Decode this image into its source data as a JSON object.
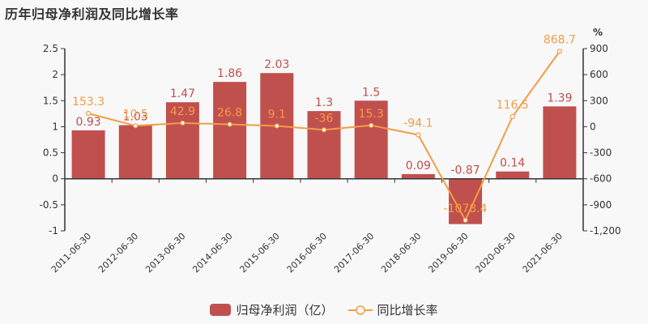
{
  "title": "历年归母净利润及同比增长率",
  "colors": {
    "bar": "#c0504d",
    "line": "#f39c45",
    "axis": "#333333",
    "text": "#333333"
  },
  "legend": {
    "bar_label": "归母净利润（亿）",
    "line_label": "同比增长率"
  },
  "right_axis_unit": "%",
  "chart_data": {
    "type": "bar+line",
    "title": "历年归母净利润及同比增长率",
    "categories": [
      "2011-06-30",
      "2012-06-30",
      "2013-06-30",
      "2014-06-30",
      "2015-06-30",
      "2016-06-30",
      "2017-06-30",
      "2018-06-30",
      "2019-06-30",
      "2020-06-30",
      "2021-06-30"
    ],
    "series": [
      {
        "name": "归母净利润（亿）",
        "type": "bar",
        "axis": "left",
        "values": [
          0.93,
          1.03,
          1.47,
          1.86,
          2.03,
          1.3,
          1.5,
          0.09,
          -0.87,
          0.14,
          1.39
        ],
        "labels": [
          "0.93",
          "1.03",
          "1.47",
          "1.86",
          "2.03",
          "1.3",
          "1.5",
          "0.09",
          "-0.87",
          "0.14",
          "1.39"
        ]
      },
      {
        "name": "同比增长率",
        "type": "line",
        "axis": "right",
        "values": [
          153.3,
          10.5,
          42.9,
          26.8,
          9.1,
          -36,
          15.3,
          -94.1,
          -1078.4,
          116.5,
          868.7
        ],
        "labels": [
          "153.3",
          "10.5",
          "42.9",
          "26.8",
          "9.1",
          "-36",
          "15.3",
          "-94.1",
          "-1078.4",
          "116.5",
          "868.7"
        ]
      }
    ],
    "left_axis": {
      "ylim": [
        -1,
        2.5
      ],
      "ticks": [
        "2.5",
        "2",
        "1.5",
        "1",
        "0.5",
        "0",
        "-0.5",
        "-1"
      ],
      "values": [
        2.5,
        2,
        1.5,
        1,
        0.5,
        0,
        -0.5,
        -1
      ]
    },
    "right_axis": {
      "ylim": [
        -1200,
        900
      ],
      "unit": "%",
      "ticks": [
        "900",
        "600",
        "300",
        "0",
        "-300",
        "-600",
        "-900",
        "-1,200"
      ],
      "values": [
        900,
        600,
        300,
        0,
        -300,
        -600,
        -900,
        -1200
      ]
    },
    "legend_position": "bottom",
    "grid": false
  }
}
